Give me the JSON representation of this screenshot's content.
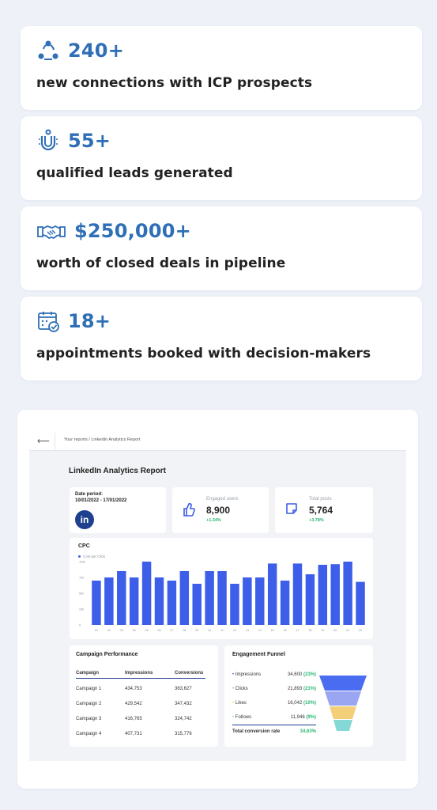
{
  "stats": [
    {
      "icon": "network-icon",
      "value": "240+",
      "description": "new connections with ICP prospects"
    },
    {
      "icon": "magnet-icon",
      "value": "55+",
      "description": "qualified leads generated"
    },
    {
      "icon": "handshake-icon",
      "value": "$250,000+",
      "description": "worth of closed deals in pipeline"
    },
    {
      "icon": "calendar-check-icon",
      "value": "18+",
      "description": "appointments booked with decision-makers"
    }
  ],
  "colors": {
    "accent": "#2f6fb6",
    "bar": "#3d5ee8",
    "positive": "#2bb673"
  },
  "report": {
    "breadcrumb": "Your reports / LinkedIn Analytics Report",
    "title": "LinkedIn Analytics Report",
    "date_label": "Date period:",
    "date_value": "10/01/2022 - 17/01/2022",
    "logo_text": "in",
    "engaged": {
      "label": "Engaged users",
      "value": "8,900",
      "delta": "+1.34%"
    },
    "posts": {
      "label": "Total posts",
      "value": "5,764",
      "delta": "+3.78%"
    },
    "cpc_title": "CPC",
    "campaign": {
      "title": "Campaign Performance",
      "headers": [
        "Campaign",
        "Impressions",
        "Conversions"
      ],
      "rows": [
        [
          "Campaign 1",
          "434,753",
          "363,627"
        ],
        [
          "Campaign 2",
          "429,542",
          "347,432"
        ],
        [
          "Campaign 3",
          "416,765",
          "324,742"
        ],
        [
          "Campaign 4",
          "407,731",
          "315,776"
        ]
      ]
    },
    "funnel": {
      "title": "Engagement Funnel",
      "rows": [
        {
          "label": "Impressions",
          "value": "34,600",
          "pct": "(23%)"
        },
        {
          "label": "Clicks",
          "value": "21,893",
          "pct": "(21%)"
        },
        {
          "label": "Likes",
          "value": "16,042",
          "pct": "(10%)"
        },
        {
          "label": "Follows",
          "value": "11,946",
          "pct": "(9%)"
        }
      ],
      "total_label": "Total conversion rate",
      "total_value": "34,63%",
      "colors": [
        "#4a6cf0",
        "#9aa6f2",
        "#f4cf7a",
        "#84d8d6"
      ]
    }
  },
  "chart_data": {
    "type": "bar",
    "title": "CPC",
    "series": [
      {
        "name": "Cost per Click",
        "values": [
          70,
          75,
          85,
          75,
          100,
          75,
          70,
          85,
          65,
          85,
          85,
          65,
          75,
          75,
          97,
          70,
          97,
          80,
          95,
          96,
          100,
          68
        ]
      }
    ],
    "categories": [
      "01",
      "02",
      "03",
      "04",
      "05",
      "06",
      "07",
      "08",
      "09",
      "10",
      "11",
      "12",
      "13",
      "14",
      "15",
      "16",
      "17",
      "18",
      "19",
      "20",
      "21",
      "22"
    ],
    "y_ticks": [
      "100k",
      "75k",
      "50k",
      "25k",
      "0"
    ],
    "ylim": [
      0,
      100
    ]
  }
}
